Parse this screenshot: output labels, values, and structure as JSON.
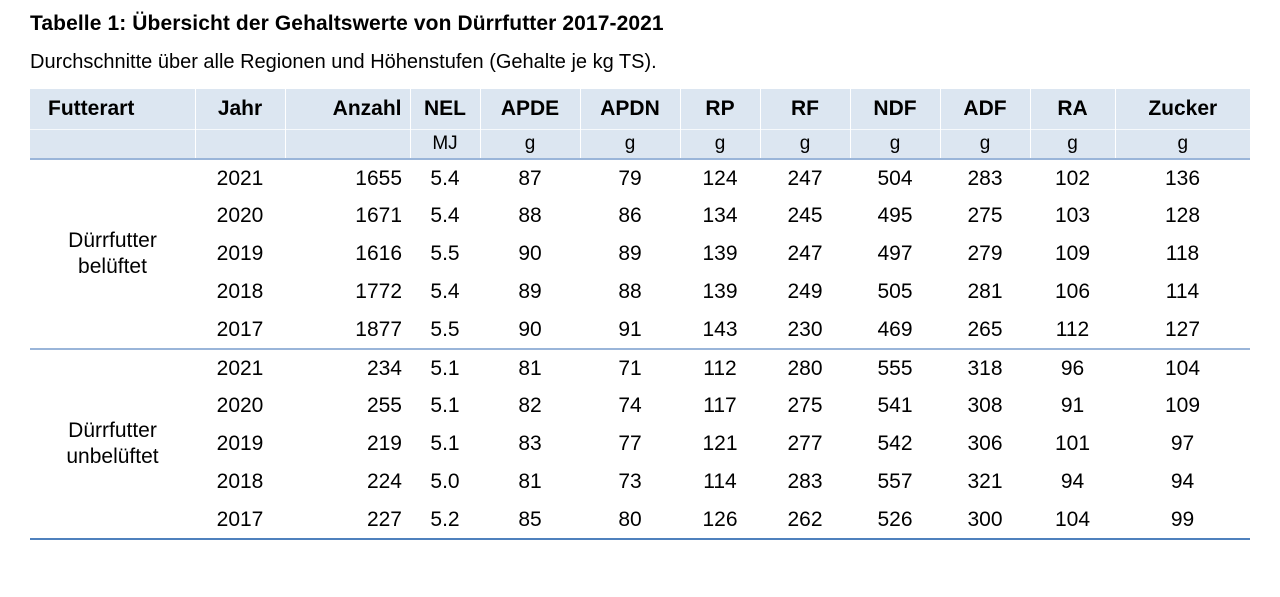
{
  "page": {
    "title": "Tabelle 1: Übersicht der Gehaltswerte von Dürrfutter 2017-2021",
    "subtitle": "Durchschnitte über alle Regionen und Höhenstufen (Gehalte je kg TS)."
  },
  "table": {
    "columns": [
      {
        "label": "Futterart",
        "unit": "",
        "align": "left"
      },
      {
        "label": "Jahr",
        "unit": "",
        "align": "center"
      },
      {
        "label": "Anzahl",
        "unit": "",
        "align": "right"
      },
      {
        "label": "NEL",
        "unit": "MJ",
        "align": "center"
      },
      {
        "label": "APDE",
        "unit": "g",
        "align": "center"
      },
      {
        "label": "APDN",
        "unit": "g",
        "align": "center"
      },
      {
        "label": "RP",
        "unit": "g",
        "align": "center"
      },
      {
        "label": "RF",
        "unit": "g",
        "align": "center"
      },
      {
        "label": "NDF",
        "unit": "g",
        "align": "center"
      },
      {
        "label": "ADF",
        "unit": "g",
        "align": "center"
      },
      {
        "label": "RA",
        "unit": "g",
        "align": "center"
      },
      {
        "label": "Zucker",
        "unit": "g",
        "align": "center"
      }
    ],
    "groups": [
      {
        "name": "Dürrfutter belüftet",
        "rows": [
          {
            "jahr": "2021",
            "values": [
              "1655",
              "5.4",
              "87",
              "79",
              "124",
              "247",
              "504",
              "283",
              "102",
              "136"
            ]
          },
          {
            "jahr": "2020",
            "values": [
              "1671",
              "5.4",
              "88",
              "86",
              "134",
              "245",
              "495",
              "275",
              "103",
              "128"
            ]
          },
          {
            "jahr": "2019",
            "values": [
              "1616",
              "5.5",
              "90",
              "89",
              "139",
              "247",
              "497",
              "279",
              "109",
              "118"
            ]
          },
          {
            "jahr": "2018",
            "values": [
              "1772",
              "5.4",
              "89",
              "88",
              "139",
              "249",
              "505",
              "281",
              "106",
              "114"
            ]
          },
          {
            "jahr": "2017",
            "values": [
              "1877",
              "5.5",
              "90",
              "91",
              "143",
              "230",
              "469",
              "265",
              "112",
              "127"
            ]
          }
        ]
      },
      {
        "name": "Dürrfutter unbelüftet",
        "rows": [
          {
            "jahr": "2021",
            "values": [
              "234",
              "5.1",
              "81",
              "71",
              "112",
              "280",
              "555",
              "318",
              "96",
              "104"
            ]
          },
          {
            "jahr": "2020",
            "values": [
              "255",
              "5.1",
              "82",
              "74",
              "117",
              "275",
              "541",
              "308",
              "91",
              "109"
            ]
          },
          {
            "jahr": "2019",
            "values": [
              "219",
              "5.1",
              "83",
              "77",
              "121",
              "277",
              "542",
              "306",
              "101",
              "97"
            ]
          },
          {
            "jahr": "2018",
            "values": [
              "224",
              "5.0",
              "81",
              "73",
              "114",
              "283",
              "557",
              "321",
              "94",
              "94"
            ]
          },
          {
            "jahr": "2017",
            "values": [
              "227",
              "5.2",
              "85",
              "80",
              "126",
              "262",
              "526",
              "300",
              "104",
              "99"
            ]
          }
        ]
      }
    ],
    "colors": {
      "header_bg": "#dce6f1",
      "rule_light": "#9ab5d9",
      "rule_strong": "#4f81bd"
    }
  }
}
